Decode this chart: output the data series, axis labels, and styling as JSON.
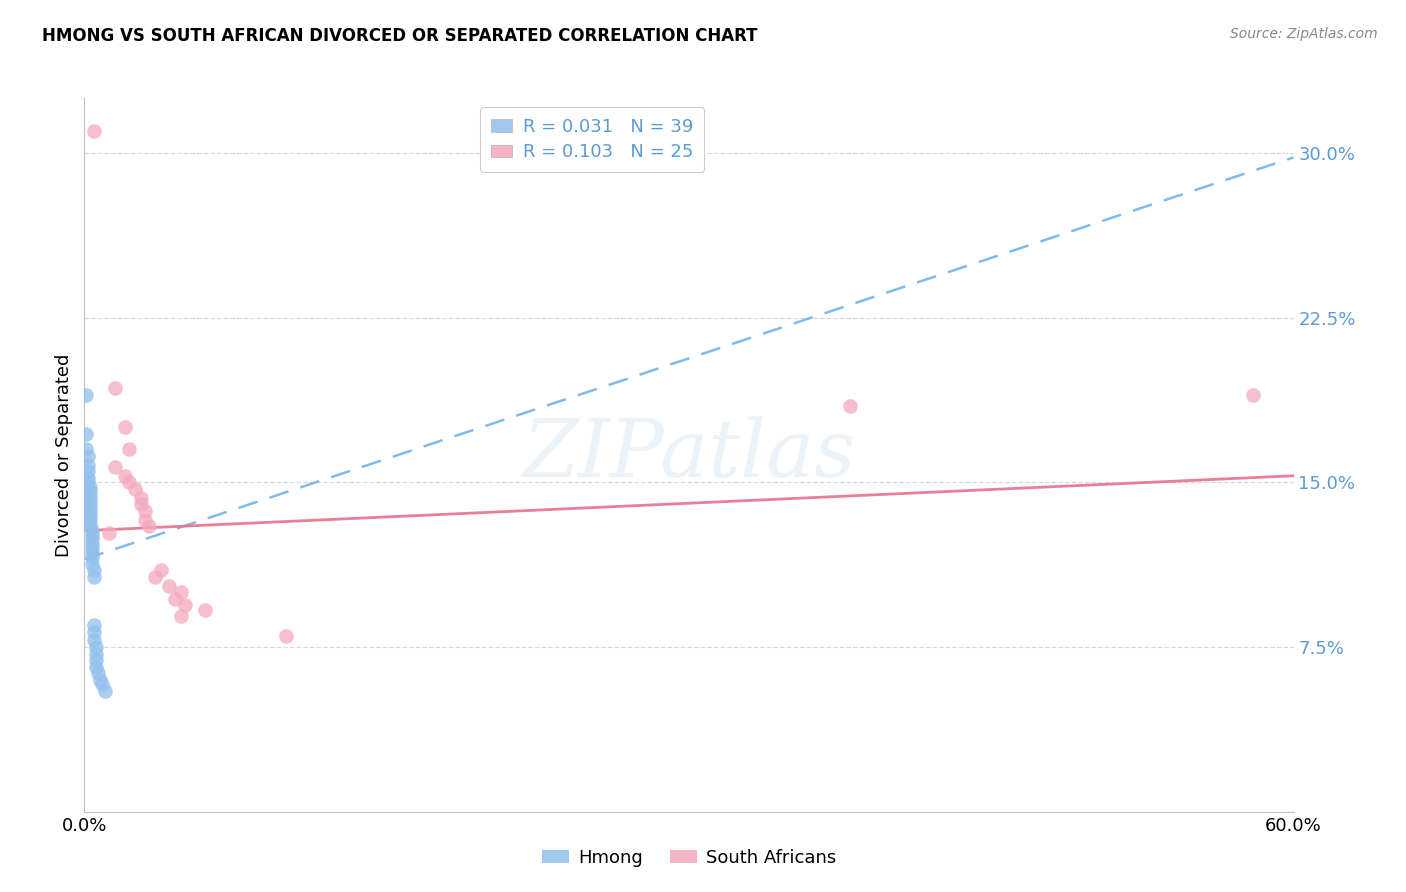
{
  "title": "HMONG VS SOUTH AFRICAN DIVORCED OR SEPARATED CORRELATION CHART",
  "source": "Source: ZipAtlas.com",
  "ylabel": "Divorced or Separated",
  "watermark": "ZIPatlas",
  "xmin": 0.0,
  "xmax": 0.6,
  "ymin": 0.0,
  "ymax": 0.325,
  "yticks": [
    0.075,
    0.15,
    0.225,
    0.3
  ],
  "ytick_labels": [
    "7.5%",
    "15.0%",
    "22.5%",
    "30.0%"
  ],
  "xticks": [
    0.0,
    0.1,
    0.2,
    0.3,
    0.4,
    0.5,
    0.6
  ],
  "xtick_labels": [
    "0.0%",
    "",
    "",
    "",
    "",
    "",
    "60.0%"
  ],
  "legend_hmong": "R = 0.031   N = 39",
  "legend_sa": "R = 0.103   N = 25",
  "hmong_color": "#91bfed",
  "sa_color": "#f4a8bc",
  "trend_hmong_color": "#6aaee8",
  "trend_sa_color": "#e8708a",
  "hmong_trend_x": [
    0.0,
    0.6
  ],
  "hmong_trend_y": [
    0.115,
    0.298
  ],
  "sa_trend_x": [
    0.0,
    0.6
  ],
  "sa_trend_y": [
    0.128,
    0.153
  ],
  "hmong_points": [
    [
      0.001,
      0.19
    ],
    [
      0.001,
      0.172
    ],
    [
      0.001,
      0.165
    ],
    [
      0.002,
      0.162
    ],
    [
      0.002,
      0.158
    ],
    [
      0.002,
      0.155
    ],
    [
      0.002,
      0.152
    ],
    [
      0.002,
      0.15
    ],
    [
      0.003,
      0.148
    ],
    [
      0.003,
      0.146
    ],
    [
      0.003,
      0.144
    ],
    [
      0.003,
      0.142
    ],
    [
      0.003,
      0.14
    ],
    [
      0.003,
      0.138
    ],
    [
      0.003,
      0.136
    ],
    [
      0.003,
      0.134
    ],
    [
      0.003,
      0.132
    ],
    [
      0.003,
      0.13
    ],
    [
      0.004,
      0.128
    ],
    [
      0.004,
      0.126
    ],
    [
      0.004,
      0.124
    ],
    [
      0.004,
      0.122
    ],
    [
      0.004,
      0.12
    ],
    [
      0.004,
      0.118
    ],
    [
      0.004,
      0.116
    ],
    [
      0.004,
      0.113
    ],
    [
      0.005,
      0.11
    ],
    [
      0.005,
      0.107
    ],
    [
      0.005,
      0.085
    ],
    [
      0.005,
      0.082
    ],
    [
      0.005,
      0.078
    ],
    [
      0.006,
      0.075
    ],
    [
      0.006,
      0.072
    ],
    [
      0.006,
      0.069
    ],
    [
      0.006,
      0.066
    ],
    [
      0.007,
      0.063
    ],
    [
      0.008,
      0.06
    ],
    [
      0.009,
      0.058
    ],
    [
      0.01,
      0.055
    ]
  ],
  "sa_points": [
    [
      0.005,
      0.31
    ],
    [
      0.015,
      0.193
    ],
    [
      0.02,
      0.175
    ],
    [
      0.022,
      0.165
    ],
    [
      0.015,
      0.157
    ],
    [
      0.02,
      0.153
    ],
    [
      0.022,
      0.15
    ],
    [
      0.025,
      0.147
    ],
    [
      0.028,
      0.143
    ],
    [
      0.028,
      0.14
    ],
    [
      0.03,
      0.137
    ],
    [
      0.03,
      0.133
    ],
    [
      0.032,
      0.13
    ],
    [
      0.012,
      0.127
    ],
    [
      0.038,
      0.11
    ],
    [
      0.035,
      0.107
    ],
    [
      0.042,
      0.103
    ],
    [
      0.048,
      0.1
    ],
    [
      0.045,
      0.097
    ],
    [
      0.05,
      0.094
    ],
    [
      0.06,
      0.092
    ],
    [
      0.048,
      0.089
    ],
    [
      0.1,
      0.08
    ],
    [
      0.38,
      0.185
    ],
    [
      0.58,
      0.19
    ]
  ]
}
